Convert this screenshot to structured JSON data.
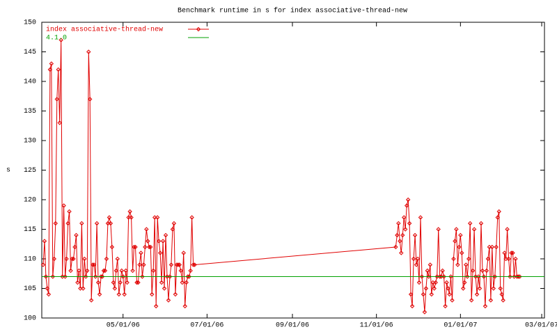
{
  "chart_data": {
    "type": "line",
    "title": "Benchmark runtime in s for index associative-thread-new",
    "y_label": "s",
    "xlim": [
      "2006-03-03",
      "2007-03-03"
    ],
    "xticks": [
      {
        "value": "2006-05-01",
        "label": "05/01/06"
      },
      {
        "value": "2006-07-01",
        "label": "07/01/06"
      },
      {
        "value": "2006-09-01",
        "label": "09/01/06"
      },
      {
        "value": "2006-11-01",
        "label": "11/01/06"
      },
      {
        "value": "2007-01-01",
        "label": "01/01/07"
      },
      {
        "value": "2007-03-01",
        "label": "03/01/07"
      }
    ],
    "ylim": [
      100,
      150
    ],
    "yticks": [
      100,
      105,
      110,
      115,
      120,
      125,
      130,
      135,
      140,
      145,
      150
    ],
    "grid": false,
    "legend": "top-left",
    "series": [
      {
        "name": "index associative-thread-new",
        "color": "#e00000",
        "markers": true,
        "x": [
          "2006-03-04",
          "2006-03-05",
          "2006-03-06",
          "2006-03-07",
          "2006-03-08",
          "2006-03-09",
          "2006-03-10",
          "2006-03-11",
          "2006-03-12",
          "2006-03-13",
          "2006-03-14",
          "2006-03-15",
          "2006-03-16",
          "2006-03-17",
          "2006-03-18",
          "2006-03-19",
          "2006-03-20",
          "2006-03-21",
          "2006-03-22",
          "2006-03-23",
          "2006-03-24",
          "2006-03-25",
          "2006-03-26",
          "2006-03-27",
          "2006-03-28",
          "2006-03-29",
          "2006-03-30",
          "2006-03-31",
          "2006-04-01",
          "2006-04-02",
          "2006-04-03",
          "2006-04-04",
          "2006-04-05",
          "2006-04-06",
          "2006-04-07",
          "2006-04-08",
          "2006-04-09",
          "2006-04-10",
          "2006-04-11",
          "2006-04-12",
          "2006-04-13",
          "2006-04-14",
          "2006-04-15",
          "2006-04-16",
          "2006-04-17",
          "2006-04-18",
          "2006-04-19",
          "2006-04-20",
          "2006-04-21",
          "2006-04-22",
          "2006-04-23",
          "2006-04-24",
          "2006-04-25",
          "2006-04-26",
          "2006-04-27",
          "2006-04-28",
          "2006-04-29",
          "2006-04-30",
          "2006-05-01",
          "2006-05-02",
          "2006-05-03",
          "2006-05-04",
          "2006-05-05",
          "2006-05-06",
          "2006-05-07",
          "2006-05-08",
          "2006-05-09",
          "2006-05-10",
          "2006-05-11",
          "2006-05-12",
          "2006-05-13",
          "2006-05-14",
          "2006-05-15",
          "2006-05-16",
          "2006-05-17",
          "2006-05-18",
          "2006-05-19",
          "2006-05-20",
          "2006-05-21",
          "2006-05-22",
          "2006-05-23",
          "2006-05-24",
          "2006-05-25",
          "2006-05-26",
          "2006-05-27",
          "2006-05-28",
          "2006-05-29",
          "2006-05-30",
          "2006-05-31",
          "2006-06-01",
          "2006-06-02",
          "2006-06-03",
          "2006-06-04",
          "2006-06-05",
          "2006-06-06",
          "2006-06-07",
          "2006-06-08",
          "2006-06-09",
          "2006-06-10",
          "2006-06-11",
          "2006-06-12",
          "2006-06-13",
          "2006-06-14",
          "2006-06-15",
          "2006-06-16",
          "2006-06-17",
          "2006-06-18",
          "2006-06-19",
          "2006-06-20",
          "2006-06-21",
          "2006-06-22",
          "2006-11-15",
          "2006-11-16",
          "2006-11-17",
          "2006-11-18",
          "2006-11-19",
          "2006-11-20",
          "2006-11-21",
          "2006-11-22",
          "2006-11-23",
          "2006-11-24",
          "2006-11-25",
          "2006-11-26",
          "2006-11-27",
          "2006-11-28",
          "2006-11-29",
          "2006-11-30",
          "2006-12-01",
          "2006-12-02",
          "2006-12-03",
          "2006-12-04",
          "2006-12-05",
          "2006-12-06",
          "2006-12-07",
          "2006-12-08",
          "2006-12-09",
          "2006-12-10",
          "2006-12-11",
          "2006-12-12",
          "2006-12-13",
          "2006-12-14",
          "2006-12-15",
          "2006-12-16",
          "2006-12-17",
          "2006-12-18",
          "2006-12-19",
          "2006-12-20",
          "2006-12-21",
          "2006-12-22",
          "2006-12-23",
          "2006-12-24",
          "2006-12-25",
          "2006-12-26",
          "2006-12-27",
          "2006-12-28",
          "2006-12-29",
          "2006-12-30",
          "2006-12-31",
          "2007-01-01",
          "2007-01-02",
          "2007-01-03",
          "2007-01-04",
          "2007-01-05",
          "2007-01-06",
          "2007-01-07",
          "2007-01-08",
          "2007-01-09",
          "2007-01-10",
          "2007-01-11",
          "2007-01-12",
          "2007-01-13",
          "2007-01-14",
          "2007-01-15",
          "2007-01-16",
          "2007-01-17",
          "2007-01-18",
          "2007-01-19",
          "2007-01-20",
          "2007-01-21",
          "2007-01-22",
          "2007-01-23",
          "2007-01-24",
          "2007-01-25",
          "2007-01-26",
          "2007-01-27",
          "2007-01-28",
          "2007-01-29",
          "2007-01-30",
          "2007-01-31",
          "2007-02-01",
          "2007-02-02",
          "2007-02-03",
          "2007-02-04",
          "2007-02-05",
          "2007-02-06",
          "2007-02-07",
          "2007-02-08",
          "2007-02-09",
          "2007-02-10",
          "2007-02-11",
          "2007-02-12",
          "2007-02-13"
        ],
        "values": [
          109,
          113,
          107,
          105,
          104,
          142,
          143,
          107,
          110,
          116,
          137,
          142,
          133,
          147,
          107,
          119,
          107,
          110,
          116,
          118,
          108,
          110,
          110,
          112,
          114,
          106,
          108,
          105,
          116,
          105,
          110,
          107,
          108,
          145,
          137,
          103,
          109,
          109,
          107,
          116,
          106,
          104,
          107,
          107,
          108,
          108,
          110,
          116,
          117,
          116,
          112,
          106,
          105,
          108,
          110,
          104,
          106,
          108,
          107,
          104,
          108,
          106,
          117,
          118,
          117,
          108,
          112,
          112,
          106,
          106,
          109,
          111,
          107,
          109,
          112,
          115,
          113,
          112,
          112,
          104,
          108,
          117,
          102,
          117,
          113,
          111,
          106,
          113,
          105,
          114,
          107,
          103,
          107,
          109,
          115,
          116,
          104,
          109,
          109,
          109,
          108,
          106,
          111,
          102,
          106,
          107,
          107,
          108,
          117,
          109,
          109,
          112,
          114,
          116,
          113,
          111,
          114,
          117,
          115,
          119,
          120,
          116,
          104,
          102,
          110,
          114,
          109,
          110,
          106,
          117,
          107,
          104,
          101,
          105,
          108,
          107,
          109,
          104,
          106,
          105,
          106,
          107,
          115,
          107,
          107,
          108,
          107,
          102,
          106,
          105,
          104,
          107,
          103,
          110,
          113,
          115,
          109,
          112,
          114,
          111,
          105,
          106,
          109,
          107,
          110,
          116,
          103,
          108,
          115,
          107,
          104,
          107,
          105,
          116,
          108,
          107,
          102,
          108,
          110,
          112,
          103,
          112,
          105,
          107,
          112,
          117,
          118,
          105,
          104,
          103,
          111,
          110,
          115,
          110,
          107,
          111,
          111,
          107,
          110,
          107,
          107,
          107
        ]
      },
      {
        "name": "4.1.0",
        "color": "#00a000",
        "markers": false,
        "x": [
          "2006-03-03",
          "2007-03-03"
        ],
        "values": [
          107,
          107
        ]
      }
    ]
  }
}
